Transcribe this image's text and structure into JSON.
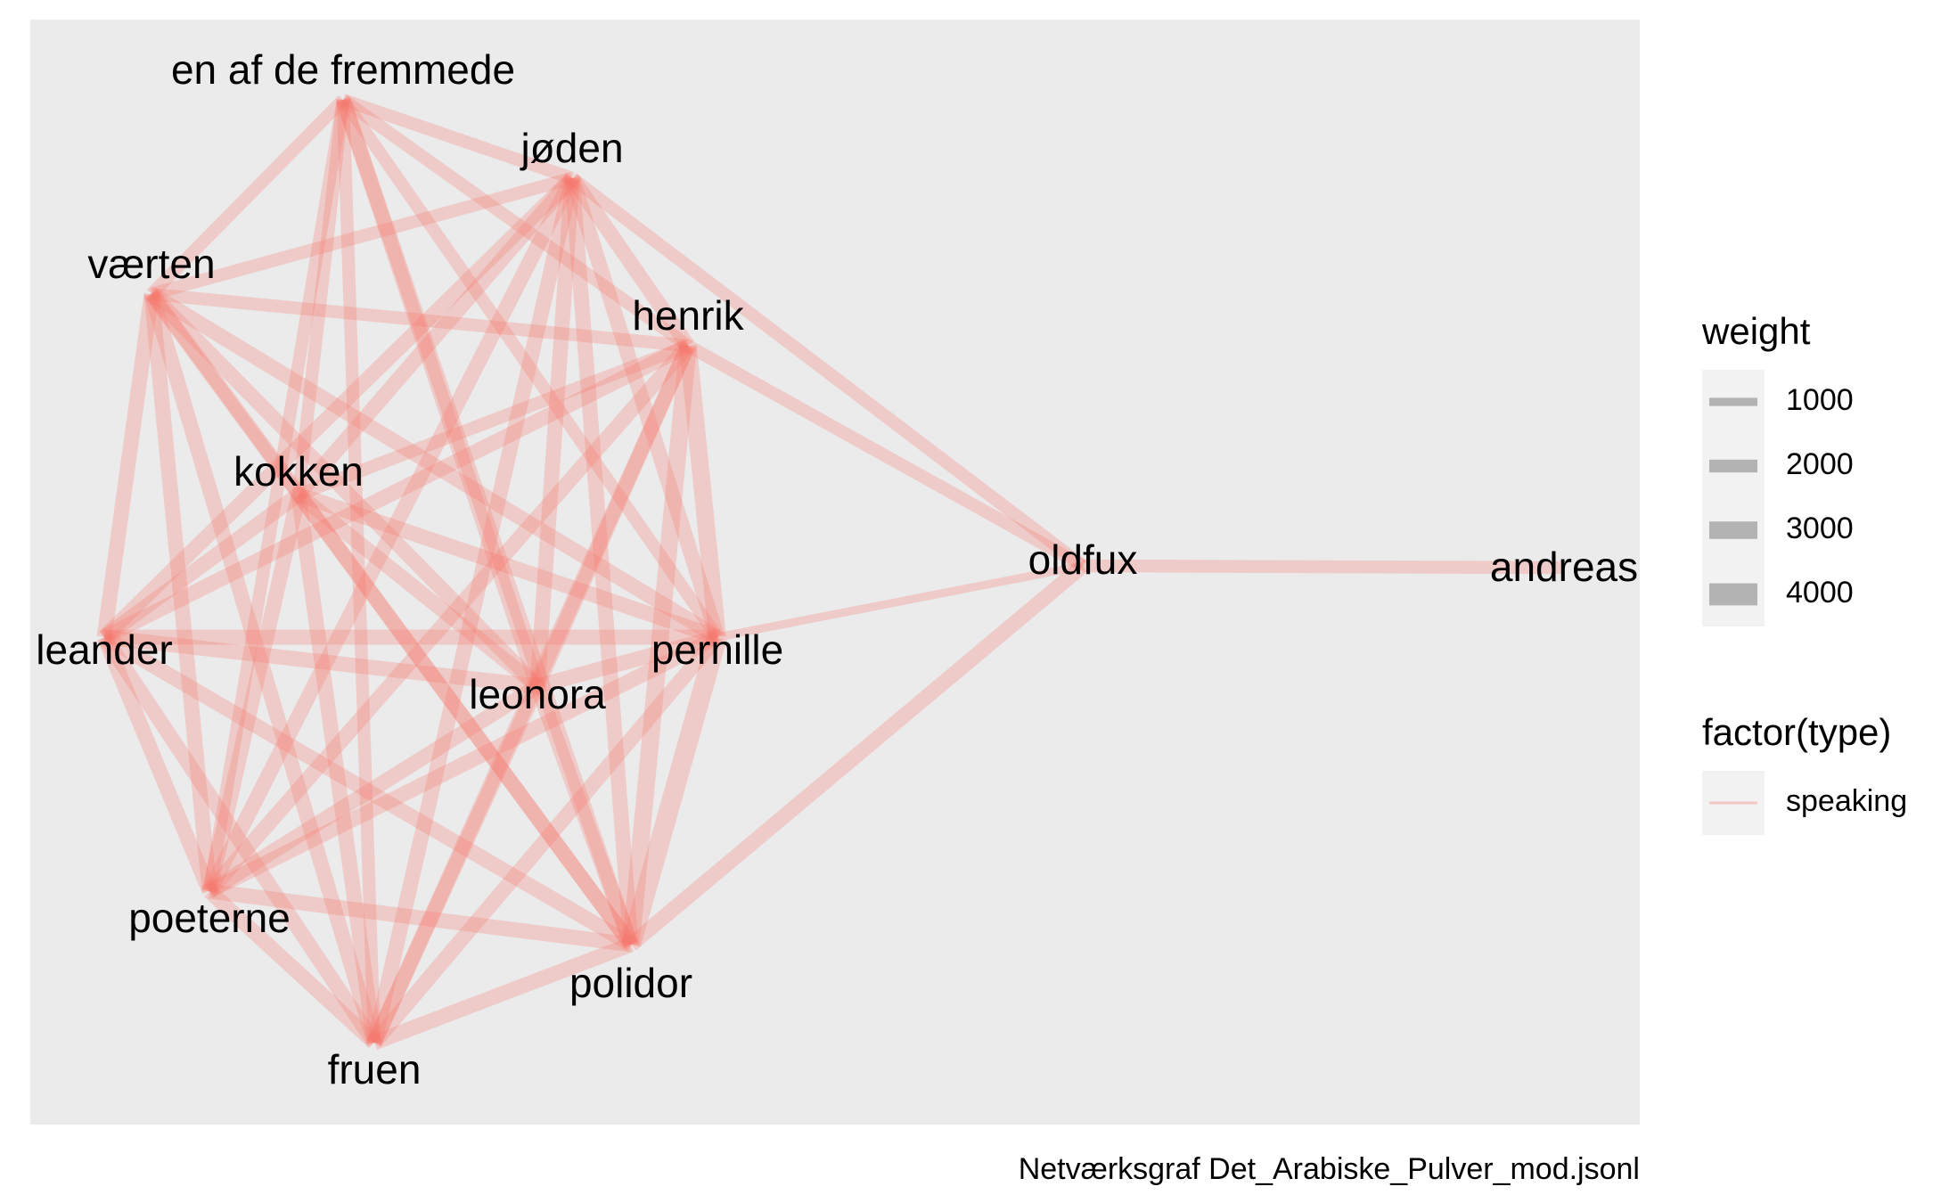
{
  "chart_data": {
    "type": "network",
    "caption": "Netværksgraf Det_Arabiske_Pulver_mod.jsonl",
    "edge_color": "#f8766d",
    "nodes": [
      {
        "id": "en af de fremmede"
      },
      {
        "id": "jøden"
      },
      {
        "id": "værten"
      },
      {
        "id": "henrik"
      },
      {
        "id": "kokken"
      },
      {
        "id": "oldfux"
      },
      {
        "id": "andreas"
      },
      {
        "id": "leander"
      },
      {
        "id": "pernille"
      },
      {
        "id": "leonora"
      },
      {
        "id": "poeterne"
      },
      {
        "id": "polidor"
      },
      {
        "id": "fruen"
      }
    ],
    "edges": [
      {
        "source": "en af de fremmede",
        "target": "jøden",
        "weight": 2000,
        "type": "speaking"
      },
      {
        "source": "en af de fremmede",
        "target": "værten",
        "weight": 2000,
        "type": "speaking"
      },
      {
        "source": "en af de fremmede",
        "target": "henrik",
        "weight": 2000,
        "type": "speaking"
      },
      {
        "source": "en af de fremmede",
        "target": "kokken",
        "weight": 2000,
        "type": "speaking"
      },
      {
        "source": "en af de fremmede",
        "target": "leonora",
        "weight": 2500,
        "type": "speaking"
      },
      {
        "source": "en af de fremmede",
        "target": "pernille",
        "weight": 2000,
        "type": "speaking"
      },
      {
        "source": "en af de fremmede",
        "target": "poeterne",
        "weight": 2000,
        "type": "speaking"
      },
      {
        "source": "en af de fremmede",
        "target": "polidor",
        "weight": 2500,
        "type": "speaking"
      },
      {
        "source": "en af de fremmede",
        "target": "fruen",
        "weight": 2000,
        "type": "speaking"
      },
      {
        "source": "jøden",
        "target": "værten",
        "weight": 2000,
        "type": "speaking"
      },
      {
        "source": "jøden",
        "target": "henrik",
        "weight": 2500,
        "type": "speaking"
      },
      {
        "source": "jøden",
        "target": "kokken",
        "weight": 2500,
        "type": "speaking"
      },
      {
        "source": "jøden",
        "target": "oldfux",
        "weight": 2000,
        "type": "speaking"
      },
      {
        "source": "jøden",
        "target": "leander",
        "weight": 2500,
        "type": "speaking"
      },
      {
        "source": "jøden",
        "target": "pernille",
        "weight": 2500,
        "type": "speaking"
      },
      {
        "source": "jøden",
        "target": "leonora",
        "weight": 2500,
        "type": "speaking"
      },
      {
        "source": "jøden",
        "target": "poeterne",
        "weight": 2500,
        "type": "speaking"
      },
      {
        "source": "jøden",
        "target": "polidor",
        "weight": 2500,
        "type": "speaking"
      },
      {
        "source": "jøden",
        "target": "fruen",
        "weight": 2500,
        "type": "speaking"
      },
      {
        "source": "værten",
        "target": "henrik",
        "weight": 2000,
        "type": "speaking"
      },
      {
        "source": "værten",
        "target": "kokken",
        "weight": 2000,
        "type": "speaking"
      },
      {
        "source": "værten",
        "target": "leander",
        "weight": 2500,
        "type": "speaking"
      },
      {
        "source": "værten",
        "target": "pernille",
        "weight": 2500,
        "type": "speaking"
      },
      {
        "source": "værten",
        "target": "leonora",
        "weight": 2500,
        "type": "speaking"
      },
      {
        "source": "værten",
        "target": "poeterne",
        "weight": 2500,
        "type": "speaking"
      },
      {
        "source": "værten",
        "target": "polidor",
        "weight": 2500,
        "type": "speaking"
      },
      {
        "source": "værten",
        "target": "fruen",
        "weight": 2500,
        "type": "speaking"
      },
      {
        "source": "henrik",
        "target": "kokken",
        "weight": 2000,
        "type": "speaking"
      },
      {
        "source": "henrik",
        "target": "oldfux",
        "weight": 2000,
        "type": "speaking"
      },
      {
        "source": "henrik",
        "target": "leander",
        "weight": 2500,
        "type": "speaking"
      },
      {
        "source": "henrik",
        "target": "pernille",
        "weight": 3000,
        "type": "speaking"
      },
      {
        "source": "henrik",
        "target": "leonora",
        "weight": 2500,
        "type": "speaking"
      },
      {
        "source": "henrik",
        "target": "poeterne",
        "weight": 2500,
        "type": "speaking"
      },
      {
        "source": "henrik",
        "target": "polidor",
        "weight": 3000,
        "type": "speaking"
      },
      {
        "source": "henrik",
        "target": "fruen",
        "weight": 2500,
        "type": "speaking"
      },
      {
        "source": "kokken",
        "target": "leander",
        "weight": 2500,
        "type": "speaking"
      },
      {
        "source": "kokken",
        "target": "pernille",
        "weight": 2500,
        "type": "speaking"
      },
      {
        "source": "kokken",
        "target": "leonora",
        "weight": 2500,
        "type": "speaking"
      },
      {
        "source": "kokken",
        "target": "poeterne",
        "weight": 2500,
        "type": "speaking"
      },
      {
        "source": "kokken",
        "target": "polidor",
        "weight": 2500,
        "type": "speaking"
      },
      {
        "source": "kokken",
        "target": "fruen",
        "weight": 2500,
        "type": "speaking"
      },
      {
        "source": "oldfux",
        "target": "andreas",
        "weight": 2000,
        "type": "speaking"
      },
      {
        "source": "oldfux",
        "target": "pernille",
        "weight": 1000,
        "type": "speaking"
      },
      {
        "source": "oldfux",
        "target": "polidor",
        "weight": 2500,
        "type": "speaking"
      },
      {
        "source": "leander",
        "target": "pernille",
        "weight": 2500,
        "type": "speaking"
      },
      {
        "source": "leander",
        "target": "leonora",
        "weight": 2500,
        "type": "speaking"
      },
      {
        "source": "leander",
        "target": "poeterne",
        "weight": 2500,
        "type": "speaking"
      },
      {
        "source": "leander",
        "target": "polidor",
        "weight": 2500,
        "type": "speaking"
      },
      {
        "source": "leander",
        "target": "fruen",
        "weight": 2500,
        "type": "speaking"
      },
      {
        "source": "pernille",
        "target": "leonora",
        "weight": 2500,
        "type": "speaking"
      },
      {
        "source": "pernille",
        "target": "poeterne",
        "weight": 2500,
        "type": "speaking"
      },
      {
        "source": "pernille",
        "target": "polidor",
        "weight": 3500,
        "type": "speaking"
      },
      {
        "source": "pernille",
        "target": "fruen",
        "weight": 2500,
        "type": "speaking"
      },
      {
        "source": "leonora",
        "target": "poeterne",
        "weight": 2500,
        "type": "speaking"
      },
      {
        "source": "leonora",
        "target": "polidor",
        "weight": 2500,
        "type": "speaking"
      },
      {
        "source": "leonora",
        "target": "fruen",
        "weight": 2500,
        "type": "speaking"
      },
      {
        "source": "poeterne",
        "target": "polidor",
        "weight": 2500,
        "type": "speaking"
      },
      {
        "source": "poeterne",
        "target": "fruen",
        "weight": 2500,
        "type": "speaking"
      },
      {
        "source": "polidor",
        "target": "fruen",
        "weight": 2500,
        "type": "speaking"
      }
    ],
    "legend": {
      "placement": "right",
      "weight": {
        "title": "weight",
        "entries": [
          {
            "label": "1000",
            "value": 1000
          },
          {
            "label": "2000",
            "value": 2000
          },
          {
            "label": "3000",
            "value": 3000
          },
          {
            "label": "4000",
            "value": 4000
          }
        ]
      },
      "type": {
        "title": "factor(type)",
        "entries": [
          {
            "label": "speaking"
          }
        ]
      }
    }
  }
}
